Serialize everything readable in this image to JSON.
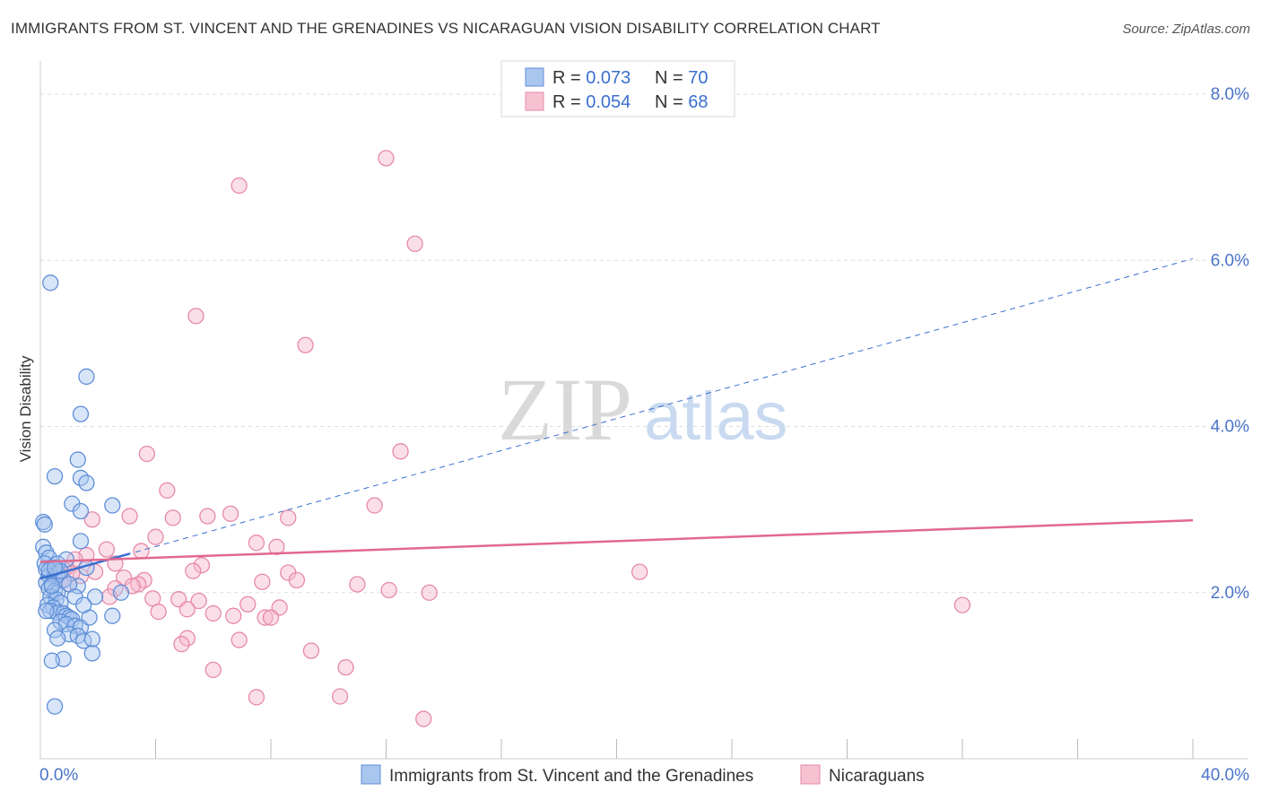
{
  "title": "IMMIGRANTS FROM ST. VINCENT AND THE GRENADINES VS NICARAGUAN VISION DISABILITY CORRELATION CHART",
  "source": "Source: ZipAtlas.com",
  "watermark": {
    "zip": "ZIP",
    "atlas": "atlas"
  },
  "colors": {
    "blue_fill": "#a9c6ef",
    "blue_stroke": "#5f8fd8",
    "blue_line": "#3b6fd0",
    "pink_fill": "#f6b8cb",
    "pink_stroke": "#e68aa8",
    "pink_line": "#e2688f",
    "tick_text": "#4a74c9",
    "grid": "#dddddd"
  },
  "legend": {
    "rows": [
      {
        "r_label": "R = ",
        "r_value": "0.073",
        "n_label": "N = ",
        "n_value": "70",
        "color": "blue"
      },
      {
        "r_label": "R = ",
        "r_value": "0.054",
        "n_label": "N = ",
        "n_value": "68",
        "color": "pink"
      }
    ]
  },
  "bottom_legend": [
    {
      "label": "Immigrants from St. Vincent and the Grenadines",
      "color": "blue"
    },
    {
      "label": "Nicaraguans",
      "color": "pink"
    }
  ],
  "chart_data": {
    "type": "scatter",
    "title": "IMMIGRANTS FROM ST. VINCENT AND THE GRENADINES VS NICARAGUAN VISION DISABILITY CORRELATION CHART",
    "xlabel": "",
    "ylabel": "Vision Disability",
    "xlim": [
      0,
      40
    ],
    "ylim": [
      0,
      8.4
    ],
    "y_ticks": [
      2.0,
      4.0,
      6.0,
      8.0
    ],
    "y_tick_labels": [
      "2.0%",
      "4.0%",
      "6.0%",
      "8.0%"
    ],
    "x_tick_labels": [
      "0.0%",
      "40.0%"
    ],
    "grid": true,
    "legend_position": "top-center",
    "series": [
      {
        "name": "Immigrants from St. Vincent and the Grenadines",
        "color": "blue",
        "trend": {
          "x": [
            0,
            40
          ],
          "y": [
            2.17,
            6.02
          ],
          "solid_until_x": 3.1,
          "style": "dashed"
        },
        "points": [
          [
            0.1,
            2.85
          ],
          [
            0.15,
            2.82
          ],
          [
            0.1,
            2.55
          ],
          [
            0.2,
            2.48
          ],
          [
            0.3,
            2.42
          ],
          [
            0.15,
            2.35
          ],
          [
            0.4,
            2.3
          ],
          [
            0.5,
            2.25
          ],
          [
            0.2,
            2.28
          ],
          [
            0.3,
            2.2
          ],
          [
            0.5,
            2.18
          ],
          [
            0.6,
            2.22
          ],
          [
            0.2,
            2.12
          ],
          [
            0.4,
            2.1
          ],
          [
            0.3,
            2.05
          ],
          [
            0.5,
            2.02
          ],
          [
            0.6,
            2.0
          ],
          [
            0.35,
            1.95
          ],
          [
            0.55,
            1.92
          ],
          [
            0.7,
            1.88
          ],
          [
            0.25,
            1.85
          ],
          [
            0.45,
            1.82
          ],
          [
            0.35,
            1.78
          ],
          [
            0.6,
            1.76
          ],
          [
            0.8,
            1.75
          ],
          [
            0.9,
            1.72
          ],
          [
            1.0,
            1.7
          ],
          [
            1.1,
            1.68
          ],
          [
            0.7,
            1.65
          ],
          [
            0.9,
            1.62
          ],
          [
            1.2,
            1.6
          ],
          [
            1.4,
            1.58
          ],
          [
            0.5,
            1.55
          ],
          [
            1.0,
            1.5
          ],
          [
            1.3,
            1.48
          ],
          [
            0.6,
            1.45
          ],
          [
            1.5,
            1.42
          ],
          [
            1.8,
            1.44
          ],
          [
            0.8,
            1.2
          ],
          [
            0.4,
            1.18
          ],
          [
            1.8,
            1.27
          ],
          [
            0.5,
            0.63
          ],
          [
            0.35,
            5.73
          ],
          [
            1.6,
            4.6
          ],
          [
            1.4,
            4.15
          ],
          [
            1.3,
            3.6
          ],
          [
            0.5,
            3.4
          ],
          [
            1.4,
            3.38
          ],
          [
            1.6,
            3.32
          ],
          [
            2.5,
            3.05
          ],
          [
            1.1,
            3.07
          ],
          [
            1.4,
            2.98
          ],
          [
            1.4,
            2.62
          ],
          [
            2.5,
            1.72
          ],
          [
            2.8,
            2.0
          ],
          [
            1.7,
            1.7
          ],
          [
            1.9,
            1.95
          ],
          [
            0.6,
            2.35
          ],
          [
            0.9,
            2.4
          ],
          [
            1.6,
            2.3
          ],
          [
            0.8,
            2.15
          ],
          [
            1.3,
            2.08
          ],
          [
            0.3,
            2.27
          ],
          [
            0.7,
            2.26
          ],
          [
            0.4,
            2.08
          ],
          [
            0.2,
            1.78
          ],
          [
            1.0,
            2.1
          ],
          [
            0.5,
            2.3
          ],
          [
            1.2,
            1.95
          ],
          [
            1.5,
            1.85
          ]
        ]
      },
      {
        "name": "Nicaraguans",
        "color": "pink",
        "trend": {
          "x": [
            0,
            40
          ],
          "y": [
            2.37,
            2.87
          ],
          "style": "solid"
        },
        "points": [
          [
            12.0,
            7.23
          ],
          [
            6.9,
            6.9
          ],
          [
            13.0,
            6.2
          ],
          [
            5.4,
            5.33
          ],
          [
            9.2,
            4.98
          ],
          [
            3.7,
            3.67
          ],
          [
            12.5,
            3.7
          ],
          [
            4.4,
            3.23
          ],
          [
            11.6,
            3.05
          ],
          [
            3.1,
            2.92
          ],
          [
            5.8,
            2.92
          ],
          [
            4.6,
            2.9
          ],
          [
            8.6,
            2.9
          ],
          [
            1.8,
            2.88
          ],
          [
            6.6,
            2.95
          ],
          [
            4.0,
            2.67
          ],
          [
            7.5,
            2.6
          ],
          [
            8.2,
            2.55
          ],
          [
            2.3,
            2.52
          ],
          [
            3.5,
            2.5
          ],
          [
            1.6,
            2.45
          ],
          [
            2.6,
            2.35
          ],
          [
            5.6,
            2.33
          ],
          [
            1.2,
            2.4
          ],
          [
            0.9,
            2.3
          ],
          [
            0.5,
            2.2
          ],
          [
            0.8,
            2.28
          ],
          [
            1.4,
            2.2
          ],
          [
            1.9,
            2.25
          ],
          [
            2.9,
            2.18
          ],
          [
            3.6,
            2.15
          ],
          [
            5.3,
            2.26
          ],
          [
            8.6,
            2.24
          ],
          [
            20.8,
            2.25
          ],
          [
            0.7,
            2.15
          ],
          [
            1.0,
            2.1
          ],
          [
            3.4,
            2.1
          ],
          [
            7.7,
            2.13
          ],
          [
            8.9,
            2.15
          ],
          [
            11.0,
            2.1
          ],
          [
            12.1,
            2.03
          ],
          [
            13.5,
            2.0
          ],
          [
            3.2,
            2.08
          ],
          [
            2.6,
            2.05
          ],
          [
            2.4,
            1.95
          ],
          [
            3.9,
            1.93
          ],
          [
            4.8,
            1.92
          ],
          [
            5.5,
            1.9
          ],
          [
            7.2,
            1.86
          ],
          [
            8.3,
            1.82
          ],
          [
            6.0,
            1.75
          ],
          [
            4.1,
            1.77
          ],
          [
            5.1,
            1.8
          ],
          [
            6.7,
            1.72
          ],
          [
            7.8,
            1.7
          ],
          [
            8.0,
            1.7
          ],
          [
            32.0,
            1.85
          ],
          [
            5.1,
            1.45
          ],
          [
            4.9,
            1.38
          ],
          [
            6.9,
            1.43
          ],
          [
            9.4,
            1.3
          ],
          [
            10.6,
            1.1
          ],
          [
            6.0,
            1.07
          ],
          [
            7.5,
            0.74
          ],
          [
            10.4,
            0.75
          ],
          [
            13.3,
            0.48
          ],
          [
            1.1,
            2.23
          ],
          [
            0.6,
            2.25
          ]
        ]
      }
    ]
  }
}
